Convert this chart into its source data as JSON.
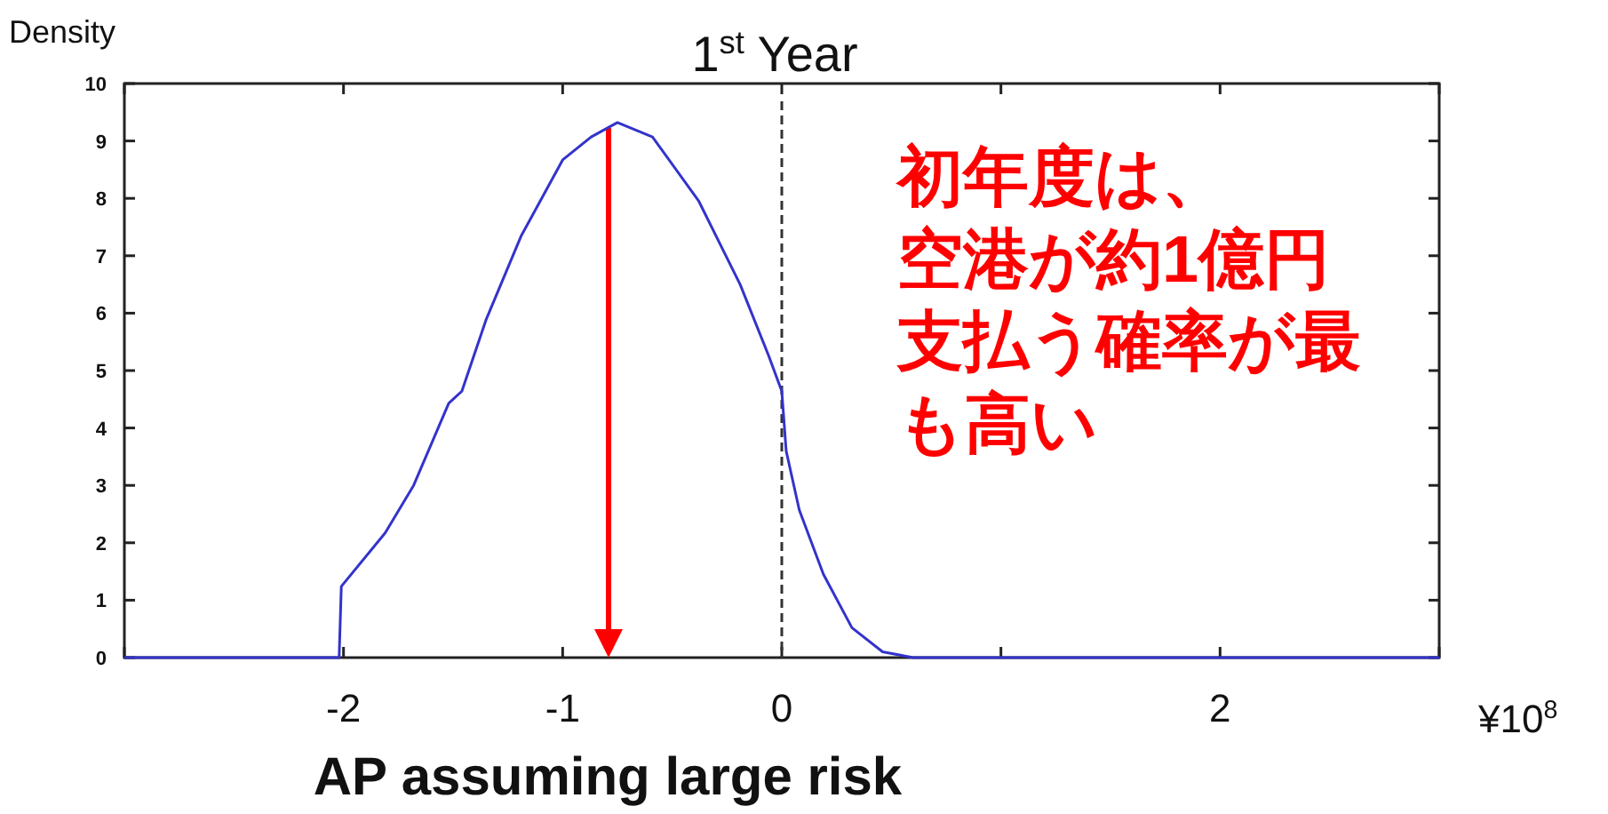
{
  "chart_data": {
    "type": "line",
    "title": "1$^{st}$ Year",
    "ylabel": "Density",
    "xlabel": "AP assuming large risk",
    "annotations": [
      "¥10$^{8}$",
      "初年度は、空港が約1億円支払う確率が最も高い"
    ],
    "xlim": [
      -3,
      3
    ],
    "ylim": [
      0,
      10
    ],
    "xticks": [
      {
        "value": -3,
        "label": null
      },
      -2,
      -1,
      0,
      {
        "value": 1,
        "label": null
      },
      2,
      {
        "value": 3,
        "label": null
      }
    ],
    "yticks": [
      0,
      1,
      2,
      3,
      4,
      5,
      6,
      7,
      8,
      9,
      10
    ],
    "ref_lines": [
      {
        "axis": "x",
        "value": 0,
        "color": "#333333",
        "line_style": "dashed"
      }
    ],
    "series": [
      {
        "color": "#3333cc",
        "x": [
          -3,
          -2.02,
          -2.01,
          -1.81,
          -1.68,
          -1.52,
          -1.46,
          -1.35,
          -1.19,
          -1.0,
          -0.87,
          -0.75,
          -0.59,
          -0.38,
          -0.19,
          -0.06,
          0,
          0.02,
          0.08,
          0.19,
          0.32,
          0.46,
          0.6,
          3
        ],
        "values": [
          0,
          0,
          1.24,
          2.17,
          3.0,
          4.43,
          4.64,
          5.88,
          7.34,
          8.67,
          9.07,
          9.32,
          9.07,
          7.96,
          6.5,
          5.26,
          4.64,
          3.6,
          2.57,
          1.45,
          0.52,
          0.1,
          0,
          0
        ]
      }
    ]
  }
}
